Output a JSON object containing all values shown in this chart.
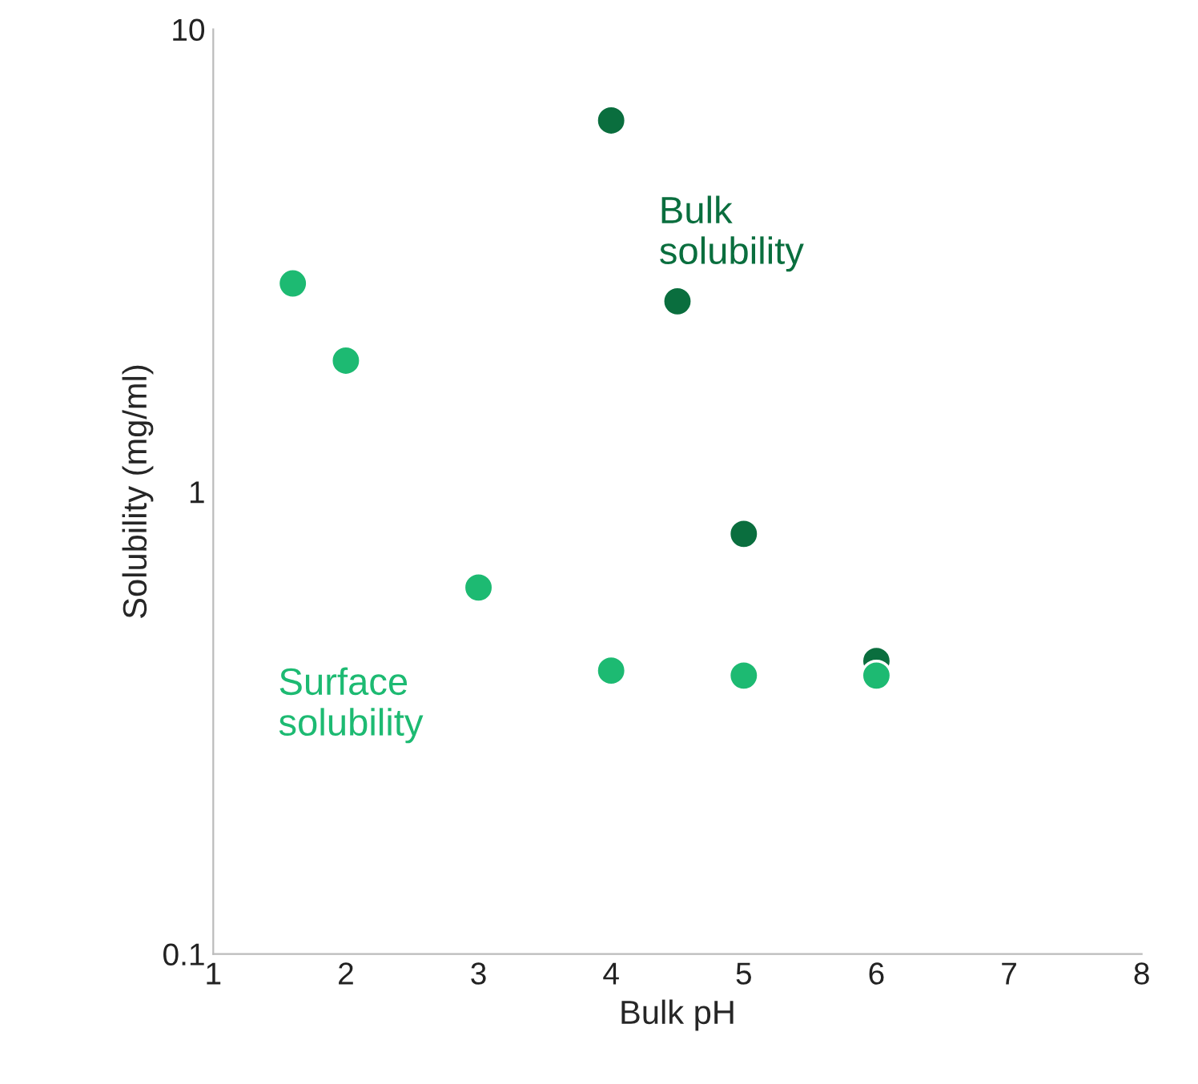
{
  "chart_data": {
    "type": "scatter",
    "xlabel": "Bulk pH",
    "ylabel": "Solubility (mg/ml)",
    "log": "y",
    "xlim": [
      1,
      8
    ],
    "xticks": [
      1,
      2,
      3,
      4,
      5,
      6,
      7,
      8
    ],
    "ylim": [
      0.1,
      10
    ],
    "yticks": [
      0.1,
      1,
      10
    ],
    "grid": false,
    "legend": false,
    "marker": "circle",
    "series": [
      {
        "name": "Bulk solubility",
        "color": "#0a6e3e",
        "x": [
          4,
          4.5,
          5,
          6
        ],
        "values": [
          6.35,
          2.58,
          0.81,
          0.43
        ]
      },
      {
        "name": "Surface solubility",
        "color": "#1dba72",
        "x": [
          1.6,
          2,
          3,
          4,
          5,
          6
        ],
        "values": [
          2.82,
          1.92,
          0.62,
          0.41,
          0.4,
          0.4
        ]
      }
    ]
  }
}
